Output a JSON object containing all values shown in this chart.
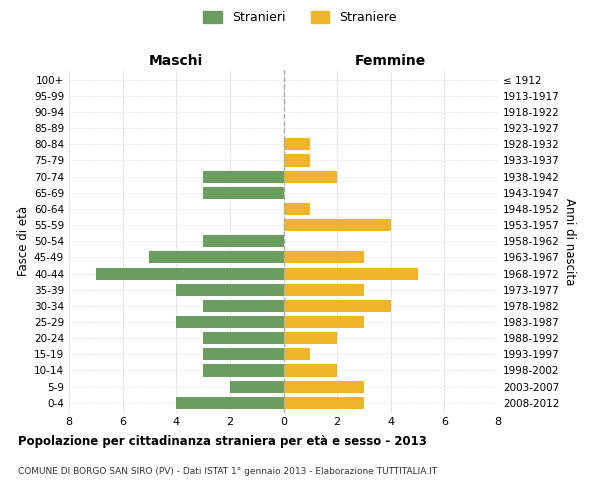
{
  "age_groups": [
    "0-4",
    "5-9",
    "10-14",
    "15-19",
    "20-24",
    "25-29",
    "30-34",
    "35-39",
    "40-44",
    "45-49",
    "50-54",
    "55-59",
    "60-64",
    "65-69",
    "70-74",
    "75-79",
    "80-84",
    "85-89",
    "90-94",
    "95-99",
    "100+"
  ],
  "birth_years": [
    "2008-2012",
    "2003-2007",
    "1998-2002",
    "1993-1997",
    "1988-1992",
    "1983-1987",
    "1978-1982",
    "1973-1977",
    "1968-1972",
    "1963-1967",
    "1958-1962",
    "1953-1957",
    "1948-1952",
    "1943-1947",
    "1938-1942",
    "1933-1937",
    "1928-1932",
    "1923-1927",
    "1918-1922",
    "1913-1917",
    "≤ 1912"
  ],
  "males": [
    4,
    2,
    3,
    3,
    3,
    4,
    3,
    4,
    7,
    5,
    3,
    0,
    0,
    3,
    3,
    0,
    0,
    0,
    0,
    0,
    0
  ],
  "females": [
    3,
    3,
    2,
    1,
    2,
    3,
    4,
    3,
    5,
    3,
    0,
    4,
    1,
    0,
    2,
    1,
    1,
    0,
    0,
    0,
    0
  ],
  "male_color": "#6a9e5f",
  "female_color": "#f0b429",
  "title": "Popolazione per cittadinanza straniera per età e sesso - 2013",
  "subtitle": "COMUNE DI BORGO SAN SIRO (PV) - Dati ISTAT 1° gennaio 2013 - Elaborazione TUTTITALIA.IT",
  "xlabel_left": "Maschi",
  "xlabel_right": "Femmine",
  "ylabel_left": "Fasce di età",
  "ylabel_right": "Anni di nascita",
  "legend_male": "Stranieri",
  "legend_female": "Straniere",
  "xlim": 8,
  "background_color": "#ffffff",
  "grid_color": "#cccccc"
}
